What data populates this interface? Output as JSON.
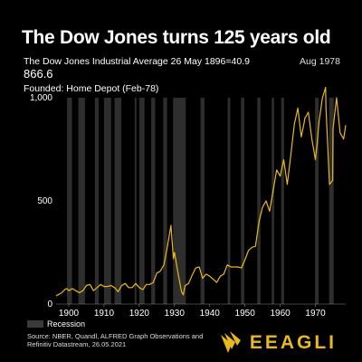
{
  "header": {
    "title": "The Dow Jones turns 125 years old",
    "subtitle": "The Dow Jones Industrial Average 26 May 1896=40.9",
    "date_label": "Aug 1978",
    "value_label": "866.6",
    "event_label": "Founded: Home Depot (Feb-78)"
  },
  "legend": {
    "recession_label": "Recession"
  },
  "source": "Source: NBER, Quandl, ALFRED Graph Observations and Refinitiv Datastream, 26.05.2021",
  "brand": {
    "name": "EEAGLI",
    "icon": "eagle-logo-icon"
  },
  "colors": {
    "line": "#e8b820",
    "recession": "#2e2e2e",
    "background": "#000000",
    "text": "#ffffff"
  },
  "chart_data": {
    "type": "line",
    "title": "The Dow Jones turns 125 years old",
    "xlim": [
      1896.4,
      1978.6
    ],
    "ylim": [
      0,
      1000
    ],
    "y_ticks": [
      0,
      500,
      1000
    ],
    "y_tick_labels": [
      "0",
      "500",
      "1,000"
    ],
    "x_ticks": [
      1900,
      1910,
      1920,
      1930,
      1940,
      1950,
      1960,
      1970
    ],
    "x_tick_labels": [
      "1900",
      "1910",
      "1920",
      "1930",
      "1940",
      "1950",
      "1960",
      "1970"
    ],
    "grid": false,
    "legend_position": "bottom-left",
    "series": [
      {
        "x": [
          1896.4,
          1897,
          1898,
          1899,
          1899.5,
          1900,
          1901,
          1901.5,
          1902,
          1903,
          1904,
          1905,
          1906,
          1907,
          1908,
          1909,
          1910,
          1911,
          1912,
          1913,
          1914,
          1915,
          1916,
          1917,
          1918,
          1919,
          1920,
          1921,
          1922,
          1923,
          1924,
          1925,
          1926,
          1927,
          1928,
          1929,
          1929.7,
          1930,
          1931,
          1932,
          1932.5,
          1933,
          1934,
          1935,
          1936,
          1937,
          1938,
          1939,
          1940,
          1941,
          1942,
          1943,
          1944,
          1945,
          1946,
          1947,
          1948,
          1949,
          1950,
          1951,
          1952,
          1953,
          1954,
          1955,
          1956,
          1957,
          1958,
          1959,
          1960,
          1961,
          1962,
          1963,
          1964,
          1965,
          1966,
          1966.8,
          1967,
          1968,
          1969,
          1970,
          1970.5,
          1971,
          1972,
          1972.9,
          1973,
          1974,
          1974.9,
          1975,
          1976,
          1977,
          1978,
          1978.6
        ],
        "y": [
          40,
          45,
          55,
          72,
          75,
          65,
          75,
          70,
          65,
          55,
          65,
          90,
          95,
          65,
          80,
          95,
          85,
          85,
          90,
          80,
          60,
          90,
          100,
          80,
          80,
          100,
          80,
          70,
          95,
          95,
          105,
          150,
          160,
          190,
          280,
          381,
          220,
          250,
          150,
          60,
          45,
          90,
          100,
          140,
          175,
          180,
          125,
          145,
          135,
          120,
          105,
          135,
          145,
          190,
          180,
          180,
          180,
          175,
          215,
          260,
          275,
          280,
          400,
          470,
          500,
          450,
          550,
          650,
          620,
          700,
          580,
          720,
          870,
          950,
          810,
          880,
          900,
          930,
          800,
          700,
          780,
          880,
          1000,
          1050,
          950,
          580,
          600,
          850,
          1000,
          830,
          800,
          866.6
        ]
      }
    ],
    "recessions": [
      [
        1899.5,
        1900.9
      ],
      [
        1902.7,
        1904.6
      ],
      [
        1907.4,
        1908.5
      ],
      [
        1910.0,
        1912.0
      ],
      [
        1913.0,
        1914.9
      ],
      [
        1918.7,
        1919.2
      ],
      [
        1920.0,
        1921.5
      ],
      [
        1923.4,
        1924.5
      ],
      [
        1926.8,
        1927.9
      ],
      [
        1929.6,
        1933.2
      ],
      [
        1937.4,
        1938.5
      ],
      [
        1945.1,
        1945.8
      ],
      [
        1948.9,
        1949.8
      ],
      [
        1953.5,
        1954.4
      ],
      [
        1957.6,
        1958.3
      ],
      [
        1960.3,
        1961.1
      ],
      [
        1969.9,
        1970.9
      ],
      [
        1973.9,
        1975.2
      ]
    ]
  }
}
